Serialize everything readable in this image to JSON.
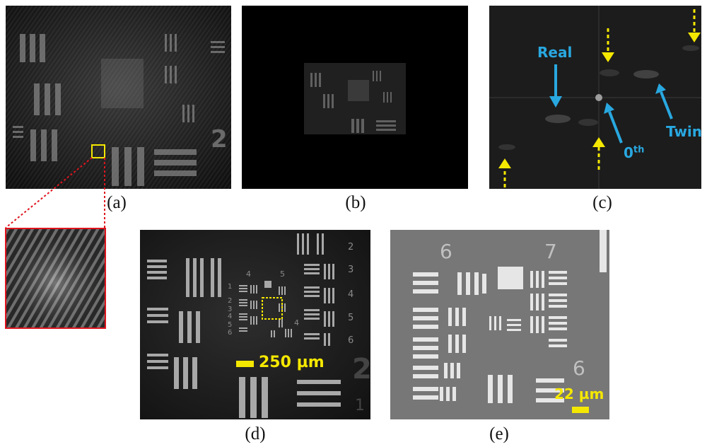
{
  "panels": {
    "a": {
      "caption": "(a)"
    },
    "b": {
      "caption": "(b)"
    },
    "c": {
      "caption": "(c)",
      "labels": {
        "real": "Real",
        "twin": "Twin",
        "zero": "0",
        "zero_sup": "th"
      }
    },
    "d": {
      "caption": "(d)",
      "scale_label": "250 µm",
      "group_numbers": [
        "2",
        "3",
        "4",
        "5",
        "6",
        "1",
        "4",
        "5",
        "2",
        "3",
        "4",
        "5",
        "6",
        "4",
        "2",
        "1"
      ]
    },
    "e": {
      "caption": "(e)",
      "scale_label": "22 µm",
      "group_numbers": [
        "6",
        "7",
        "6"
      ]
    }
  },
  "colors": {
    "annotation_yellow": "#f5e800",
    "annotation_blue": "#29a8e0",
    "zoom_box_red": "#e0141e"
  }
}
